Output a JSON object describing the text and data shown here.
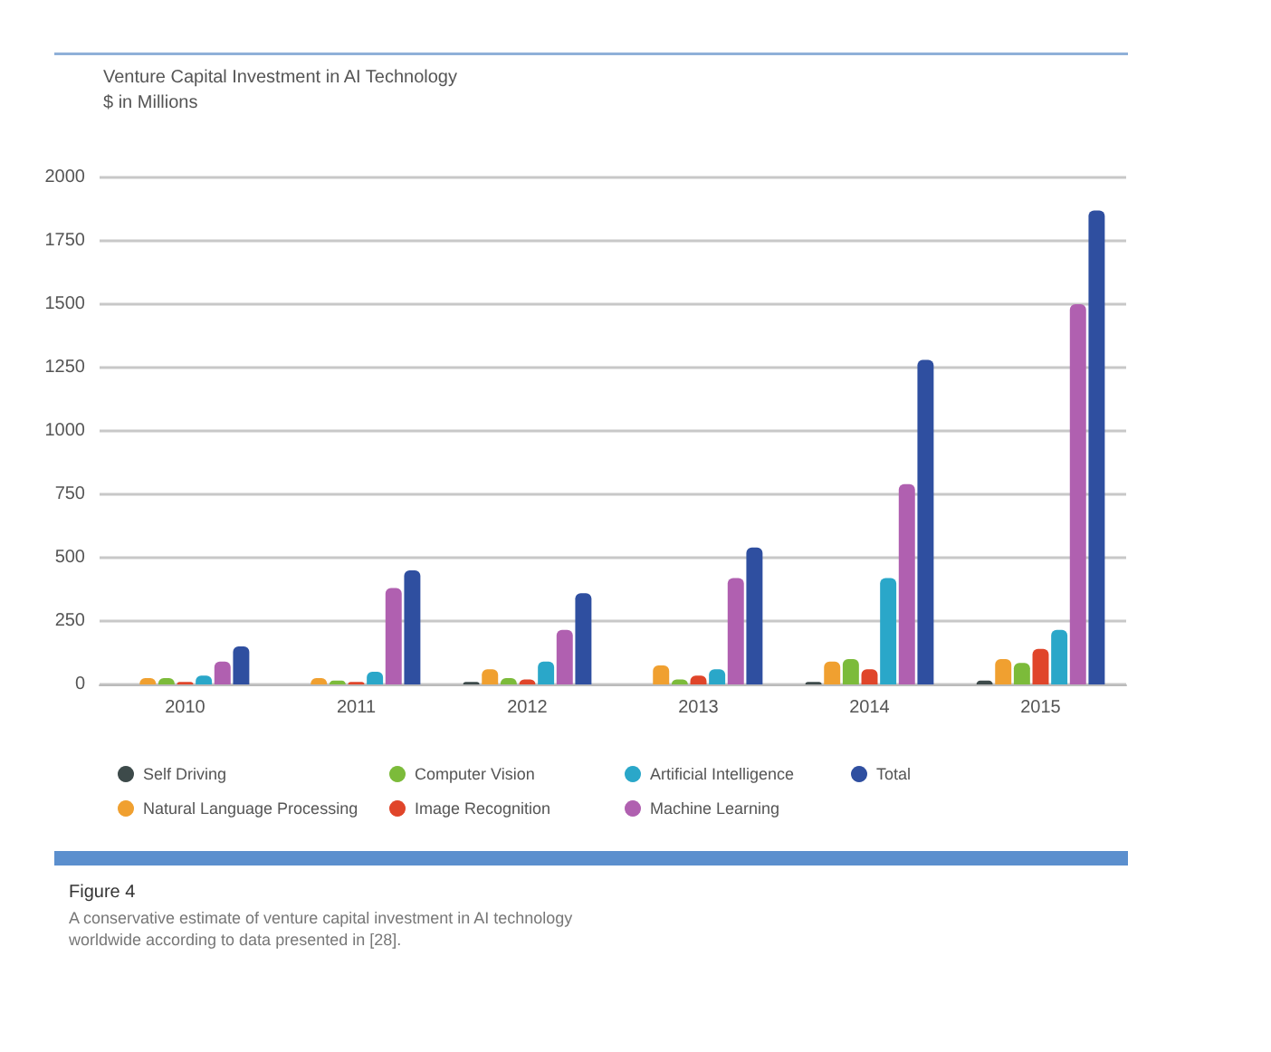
{
  "chart_data": {
    "type": "bar",
    "title": "Venture Capital Investment in AI Technology",
    "subtitle": "$ in Millions",
    "categories": [
      "2010",
      "2011",
      "2012",
      "2013",
      "2014",
      "2015"
    ],
    "series": [
      {
        "name": "Self Driving",
        "color": "#3d4a4a",
        "values": [
          0,
          0,
          10,
          0,
          10,
          15
        ]
      },
      {
        "name": "Natural Language Processing",
        "color": "#f0a030",
        "values": [
          25,
          25,
          60,
          75,
          90,
          100
        ]
      },
      {
        "name": "Computer Vision",
        "color": "#7cbb3a",
        "values": [
          25,
          15,
          25,
          20,
          100,
          85
        ]
      },
      {
        "name": "Image Recognition",
        "color": "#e0452a",
        "values": [
          10,
          10,
          20,
          35,
          60,
          140
        ]
      },
      {
        "name": "Artificial Intelligence",
        "color": "#2aa7c9",
        "values": [
          35,
          50,
          90,
          60,
          420,
          215
        ]
      },
      {
        "name": "Machine Learning",
        "color": "#b060b0",
        "values": [
          90,
          380,
          215,
          420,
          790,
          1500
        ]
      },
      {
        "name": "Total",
        "color": "#2f4fa0",
        "values": [
          150,
          450,
          360,
          540,
          1280,
          1870
        ]
      }
    ],
    "ylim": [
      0,
      2000
    ],
    "yticks": [
      0,
      250,
      500,
      750,
      1000,
      1250,
      1500,
      1750,
      2000
    ],
    "grid": "y",
    "legend": "bottom",
    "annotations": [
      "Figure 4",
      "A conservative estimate of venture capital investment in AI technology worldwide according to data presented in [28]."
    ]
  }
}
